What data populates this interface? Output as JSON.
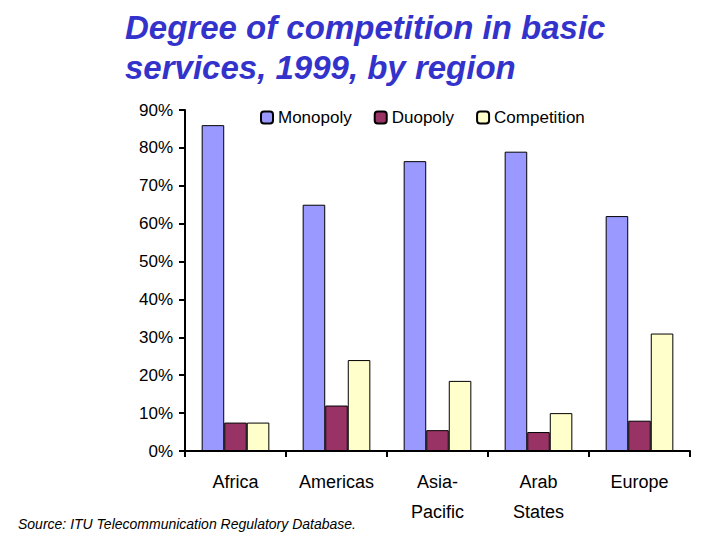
{
  "chart_data": {
    "type": "bar",
    "title": "Degree of competition in basic\nservices, 1999, by region",
    "annotations": [
      "Source: ITU Telecommunication Regulatory Database."
    ],
    "categories": [
      "Africa",
      "Americas",
      "Asia-\nPacific",
      "Arab\nStates",
      "Europe"
    ],
    "series": [
      {
        "name": "Monopoly",
        "color": "#9999ff",
        "values": [
          86,
          65,
          76.5,
          79,
          62
        ]
      },
      {
        "name": "Duopoly",
        "color": "#993366",
        "values": [
          7.5,
          12,
          5.5,
          5,
          8
        ]
      },
      {
        "name": "Competition",
        "color": "#ffffcc",
        "values": [
          7.5,
          24,
          18.5,
          10,
          31
        ]
      }
    ],
    "ylim": [
      0,
      90
    ],
    "yticks": [
      {
        "value": 0,
        "label": "0%"
      },
      {
        "value": 10,
        "label": "10%"
      },
      {
        "value": 20,
        "label": "20%"
      },
      {
        "value": 30,
        "label": "30%"
      },
      {
        "value": 40,
        "label": "40%"
      },
      {
        "value": 50,
        "label": "50%"
      },
      {
        "value": 60,
        "label": "60%"
      },
      {
        "value": 70,
        "label": "70%"
      },
      {
        "value": 80,
        "label": "80%"
      },
      {
        "value": 90,
        "label": "90%"
      }
    ],
    "grid": false,
    "legend": "top"
  }
}
